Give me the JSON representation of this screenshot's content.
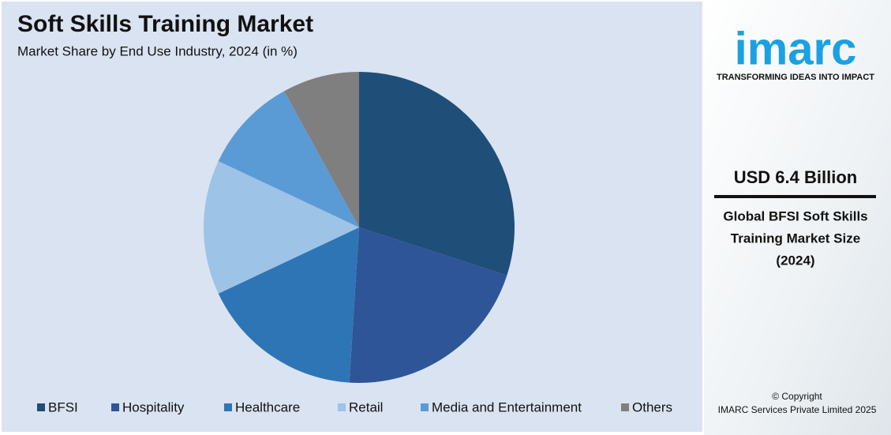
{
  "chart_data": {
    "type": "pie",
    "title": "Soft Skills Training Market",
    "subtitle": "Market Share by End Use Industry, 2024 (in %)",
    "categories": [
      "BFSI",
      "Hospitality",
      "Healthcare",
      "Retail",
      "Media and Entertainment",
      "Others"
    ],
    "values": [
      30,
      21,
      17,
      14,
      10,
      8
    ],
    "colors": [
      "#1f4e79",
      "#2e5597",
      "#2e75b6",
      "#9dc3e6",
      "#5b9bd5",
      "#7f7f7f"
    ],
    "legend": "bottom"
  },
  "side_panel": {
    "logo": "imarc",
    "tagline": "TRANSFORMING IDEAS INTO IMPACT",
    "headline": "USD 6.4 Billion",
    "description": [
      "Global BFSI Soft Skills",
      "Training Market Size",
      "(2024)"
    ],
    "copyright": [
      "© Copyright",
      "IMARC Services Private Limited 2025"
    ]
  }
}
